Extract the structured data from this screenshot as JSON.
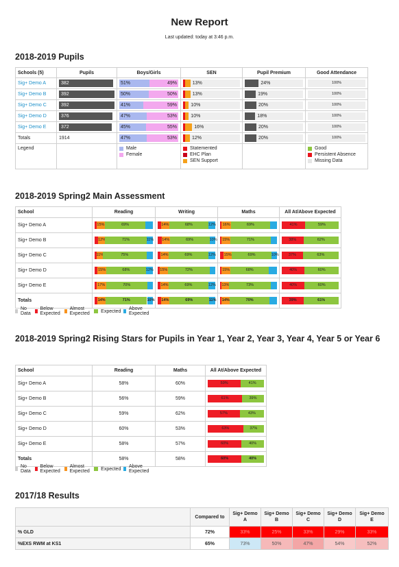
{
  "header": {
    "title": "New Report",
    "subtitle": "Last updated: today at 3:46 p.m."
  },
  "pupils": {
    "title": "2018-2019 Pupils",
    "columns": [
      "Schools (5)",
      "Pupils",
      "Boys/Girls",
      "SEN",
      "Pupil Premium",
      "Good Attendance"
    ],
    "rows": [
      {
        "school": "Sig+ Demo A",
        "pupils": 382,
        "boys": "51%",
        "girls": "49%",
        "sen": "13%",
        "pupil_premium": "24%",
        "attendance": "100%"
      },
      {
        "school": "Sig+ Demo B",
        "pupils": 392,
        "boys": "50%",
        "girls": "50%",
        "sen": "13%",
        "pupil_premium": "19%",
        "attendance": "100%"
      },
      {
        "school": "Sig+ Demo C",
        "pupils": 392,
        "boys": "41%",
        "girls": "59%",
        "sen": "10%",
        "pupil_premium": "20%",
        "attendance": "100%"
      },
      {
        "school": "Sig+ Demo D",
        "pupils": 376,
        "boys": "47%",
        "girls": "53%",
        "sen": "10%",
        "pupil_premium": "18%",
        "attendance": "100%"
      },
      {
        "school": "Sig+ Demo E",
        "pupils": 372,
        "boys": "45%",
        "girls": "55%",
        "sen": "16%",
        "pupil_premium": "20%",
        "attendance": "100%"
      },
      {
        "school": "Totals",
        "pupils": 1914,
        "boys": "47%",
        "girls": "53%",
        "sen": "12%",
        "pupil_premium": "20%",
        "attendance": "100%"
      }
    ],
    "legend": {
      "label": "Legend",
      "boys_girls": [
        {
          "name": "Male",
          "color": "#aab8ef"
        },
        {
          "name": "Female",
          "color": "#f3a8ee"
        }
      ],
      "sen": [
        {
          "name": "Statemented",
          "color": "#e8141c"
        },
        {
          "name": "EHC Plan",
          "color": "#c8001a"
        },
        {
          "name": "SEN Support",
          "color": "#f5a01a"
        }
      ],
      "attendance": [
        {
          "name": "Good",
          "color": "#8dc63f"
        },
        {
          "name": "Persistent Absence",
          "color": "#e8141c"
        },
        {
          "name": "Missing Data",
          "color": "#e6e6e6"
        }
      ]
    }
  },
  "assessment_legend": [
    {
      "name": "No Data",
      "color": "#cccccc"
    },
    {
      "name": "Below Expected",
      "color": "#ee1c25"
    },
    {
      "name": "Almost Expected",
      "color": "#f7931e"
    },
    {
      "name": "Expected",
      "color": "#8dc63f"
    },
    {
      "name": "Above Expected",
      "color": "#29abe2"
    }
  ],
  "main": {
    "title": "2018-2019 Spring2 Main Assessment",
    "columns": [
      "School",
      "Reading",
      "Writing",
      "Maths",
      "All At/Above Expected"
    ],
    "rows": [
      {
        "school": "Sig+ Demo A",
        "reading": {
          "values": [
            3,
            15,
            69,
            13
          ],
          "value_labels": [
            null,
            "15%",
            "69%",
            null
          ]
        },
        "writing": {
          "values": [
            6,
            14,
            68,
            12
          ],
          "value_labels": [
            null,
            "14%",
            "68%",
            "12%"
          ]
        },
        "maths": {
          "values": [
            3,
            16,
            69,
            12
          ],
          "value_labels": [
            null,
            "16%",
            "69%",
            null
          ]
        },
        "all": {
          "values": [
            41,
            59
          ],
          "value_labels": [
            "41%",
            "59%"
          ]
        }
      },
      {
        "school": "Sig+ Demo B",
        "reading": {
          "values": [
            6,
            12,
            71,
            11
          ],
          "value_labels": [
            null,
            "12%",
            "71%",
            "11%"
          ]
        },
        "writing": {
          "values": [
            7,
            14,
            69,
            10
          ],
          "value_labels": [
            null,
            "14%",
            "69%",
            "10%"
          ]
        },
        "maths": {
          "values": [
            3,
            15,
            71,
            11
          ],
          "value_labels": [
            null,
            "15%",
            "71%",
            null
          ]
        },
        "all": {
          "values": [
            38,
            62
          ],
          "value_labels": [
            "38%",
            "62%"
          ]
        }
      },
      {
        "school": "Sig+ Demo C",
        "reading": {
          "values": [
            3,
            11,
            75,
            11
          ],
          "value_labels": [
            null,
            "11%",
            "75%",
            null
          ]
        },
        "writing": {
          "values": [
            5,
            14,
            69,
            12
          ],
          "value_labels": [
            null,
            "14%",
            "69%",
            "12%"
          ]
        },
        "maths": {
          "values": [
            6,
            15,
            69,
            10
          ],
          "value_labels": [
            null,
            "15%",
            "69%",
            "10%"
          ]
        },
        "all": {
          "values": [
            37,
            63
          ],
          "value_labels": [
            "37%",
            "63%"
          ]
        }
      },
      {
        "school": "Sig+ Demo D",
        "reading": {
          "values": [
            5,
            15,
            68,
            12
          ],
          "value_labels": [
            null,
            "15%",
            "68%",
            "12%"
          ]
        },
        "writing": {
          "values": [
            3,
            15,
            72,
            10
          ],
          "value_labels": [
            null,
            "15%",
            "72%",
            null
          ]
        },
        "maths": {
          "values": [
            3,
            15,
            68,
            14
          ],
          "value_labels": [
            null,
            "15%",
            "68%",
            null
          ]
        },
        "all": {
          "values": [
            40,
            60
          ],
          "value_labels": [
            "40%",
            "60%"
          ]
        }
      },
      {
        "school": "Sig+ Demo E",
        "reading": {
          "values": [
            3,
            17,
            70,
            10
          ],
          "value_labels": [
            null,
            "17%",
            "70%",
            null
          ]
        },
        "writing": {
          "values": [
            5,
            14,
            69,
            12
          ],
          "value_labels": [
            null,
            "14%",
            "69%",
            "12%"
          ]
        },
        "maths": {
          "values": [
            3,
            13,
            73,
            11
          ],
          "value_labels": [
            null,
            "13%",
            "73%",
            null
          ]
        },
        "all": {
          "values": [
            40,
            60
          ],
          "value_labels": [
            "40%",
            "60%"
          ]
        }
      },
      {
        "school": "Totals",
        "reading": {
          "values": [
            5,
            14,
            71,
            10
          ],
          "value_labels": [
            null,
            "14%",
            "71%",
            "10%"
          ]
        },
        "writing": {
          "values": [
            6,
            14,
            69,
            11
          ],
          "value_labels": [
            null,
            "14%",
            "69%",
            "11%"
          ]
        },
        "maths": {
          "values": [
            3,
            14,
            70,
            13
          ],
          "value_labels": [
            null,
            "14%",
            "70%",
            null
          ]
        },
        "all": {
          "values": [
            39,
            61
          ],
          "value_labels": [
            "39%",
            "61%"
          ]
        }
      }
    ]
  },
  "rising": {
    "title": "2018-2019 Spring2 Rising Stars for Pupils in Year 1, Year 2, Year 3, Year 4, Year 5 or Year 6",
    "columns": [
      "School",
      "Reading",
      "Maths",
      "All At/Above Expected"
    ],
    "rows": [
      {
        "school": "Sig+ Demo A",
        "reading": "58%",
        "maths": "60%",
        "all": {
          "values": [
            59,
            41
          ],
          "value_labels": [
            "59%",
            "41%"
          ]
        }
      },
      {
        "school": "Sig+ Demo B",
        "reading": "56%",
        "maths": "59%",
        "all": {
          "values": [
            61,
            39
          ],
          "value_labels": [
            "61%",
            "39%"
          ]
        }
      },
      {
        "school": "Sig+ Demo C",
        "reading": "59%",
        "maths": "62%",
        "all": {
          "values": [
            57,
            43
          ],
          "value_labels": [
            "57%",
            "43%"
          ]
        }
      },
      {
        "school": "Sig+ Demo D",
        "reading": "60%",
        "maths": "53%",
        "all": {
          "values": [
            63,
            37
          ],
          "value_labels": [
            "63%",
            "37%"
          ]
        }
      },
      {
        "school": "Sig+ Demo E",
        "reading": "58%",
        "maths": "57%",
        "all": {
          "values": [
            60,
            40
          ],
          "value_labels": [
            "60%",
            "40%"
          ]
        }
      },
      {
        "school": "Totals",
        "reading": "58%",
        "maths": "58%",
        "all": {
          "values": [
            60,
            40
          ],
          "value_labels": [
            "60%",
            "40%"
          ]
        }
      }
    ]
  },
  "results": {
    "title": "2017/18 Results",
    "columns": [
      "Compared to",
      "Sig+ Demo A",
      "Sig+ Demo B",
      "Sig+ Demo C",
      "Sig+ Demo D",
      "Sig+ Demo E"
    ],
    "rows": [
      {
        "label": "% GLD",
        "compared_to": "72%",
        "values": [
          "33%",
          "25%",
          "33%",
          "29%",
          "33%"
        ],
        "colors": [
          "#ff0000",
          "#ff0000",
          "#ff0000",
          "#ff0000",
          "#ff0000"
        ],
        "text_color": "#ff9d9d"
      },
      {
        "label": "%EXS RWM at KS1",
        "compared_to": "65%",
        "values": [
          "73%",
          "50%",
          "47%",
          "54%",
          "52%"
        ],
        "colors": [
          "#cde8f6",
          "#f6b9b9",
          "#f3a6a6",
          "#f8c9c9",
          "#f6bebe"
        ],
        "text_color": "#555555"
      }
    ]
  }
}
